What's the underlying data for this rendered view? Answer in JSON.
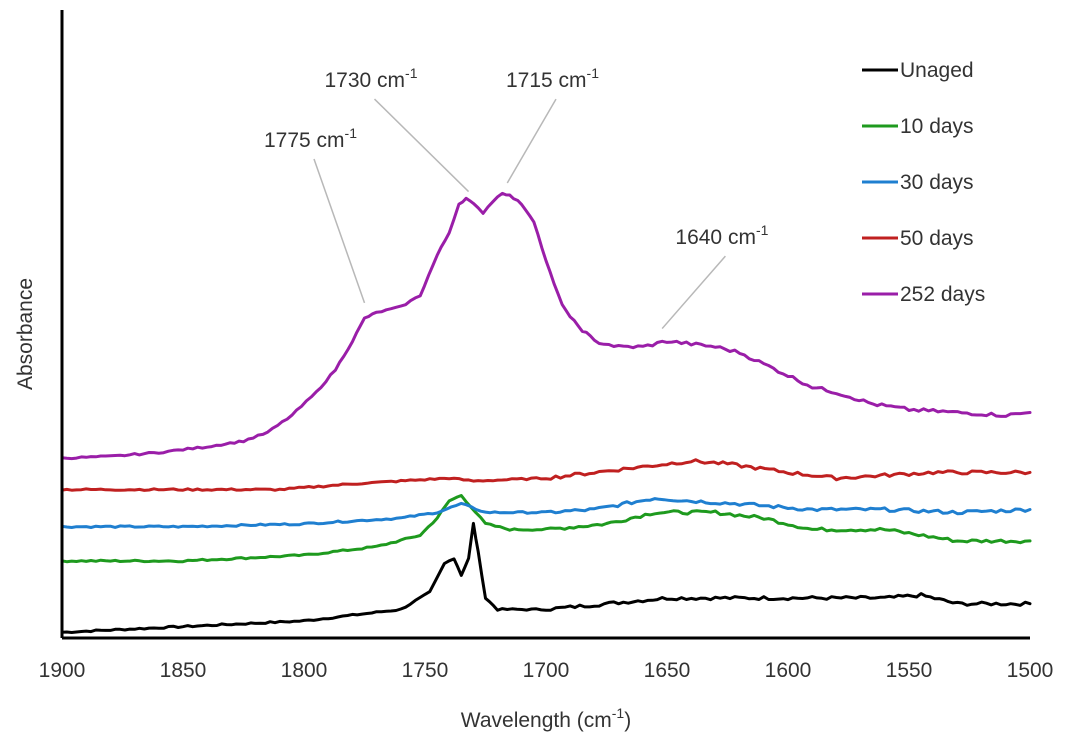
{
  "chart_data": {
    "type": "line",
    "xlabel": "Wavelength (cm",
    "xlabel_sup": "-1",
    "xlabel_close": ")",
    "ylabel": "Absorbance",
    "xlim": [
      1900,
      1500
    ],
    "x_reversed": true,
    "ylim": [
      0,
      1.1
    ],
    "x_ticks": [
      "1900",
      "1850",
      "1800",
      "1750",
      "1700",
      "1650",
      "1600",
      "1550",
      "1500"
    ],
    "grid": false,
    "legend_position": "top-right",
    "series": [
      {
        "name": "Unaged",
        "color": "#000000",
        "points": [
          [
            1900,
            0.01
          ],
          [
            1850,
            0.02
          ],
          [
            1800,
            0.03
          ],
          [
            1760,
            0.05
          ],
          [
            1748,
            0.08
          ],
          [
            1742,
            0.13
          ],
          [
            1738,
            0.14
          ],
          [
            1735,
            0.11
          ],
          [
            1732,
            0.14
          ],
          [
            1730,
            0.2
          ],
          [
            1728,
            0.15
          ],
          [
            1725,
            0.07
          ],
          [
            1720,
            0.05
          ],
          [
            1700,
            0.05
          ],
          [
            1650,
            0.07
          ],
          [
            1600,
            0.07
          ],
          [
            1560,
            0.07
          ],
          [
            1545,
            0.075
          ],
          [
            1530,
            0.06
          ],
          [
            1500,
            0.06
          ]
        ]
      },
      {
        "name": "10 days",
        "color": "#1e9a1e",
        "points": [
          [
            1900,
            0.135
          ],
          [
            1850,
            0.135
          ],
          [
            1800,
            0.145
          ],
          [
            1770,
            0.16
          ],
          [
            1752,
            0.18
          ],
          [
            1745,
            0.21
          ],
          [
            1740,
            0.24
          ],
          [
            1735,
            0.25
          ],
          [
            1731,
            0.23
          ],
          [
            1725,
            0.2
          ],
          [
            1715,
            0.19
          ],
          [
            1700,
            0.19
          ],
          [
            1675,
            0.2
          ],
          [
            1655,
            0.22
          ],
          [
            1630,
            0.22
          ],
          [
            1610,
            0.21
          ],
          [
            1590,
            0.19
          ],
          [
            1560,
            0.19
          ],
          [
            1530,
            0.17
          ],
          [
            1500,
            0.17
          ]
        ]
      },
      {
        "name": "30 days",
        "color": "#1f7fd0",
        "points": [
          [
            1900,
            0.195
          ],
          [
            1850,
            0.195
          ],
          [
            1800,
            0.2
          ],
          [
            1760,
            0.21
          ],
          [
            1745,
            0.22
          ],
          [
            1735,
            0.235
          ],
          [
            1725,
            0.22
          ],
          [
            1700,
            0.22
          ],
          [
            1680,
            0.225
          ],
          [
            1655,
            0.245
          ],
          [
            1640,
            0.24
          ],
          [
            1620,
            0.235
          ],
          [
            1590,
            0.225
          ],
          [
            1560,
            0.225
          ],
          [
            1530,
            0.22
          ],
          [
            1500,
            0.225
          ]
        ]
      },
      {
        "name": "50 days",
        "color": "#c02020",
        "points": [
          [
            1900,
            0.26
          ],
          [
            1850,
            0.26
          ],
          [
            1810,
            0.26
          ],
          [
            1780,
            0.27
          ],
          [
            1760,
            0.275
          ],
          [
            1740,
            0.28
          ],
          [
            1730,
            0.275
          ],
          [
            1700,
            0.28
          ],
          [
            1680,
            0.29
          ],
          [
            1660,
            0.3
          ],
          [
            1640,
            0.31
          ],
          [
            1625,
            0.305
          ],
          [
            1600,
            0.29
          ],
          [
            1580,
            0.28
          ],
          [
            1560,
            0.285
          ],
          [
            1540,
            0.29
          ],
          [
            1520,
            0.29
          ],
          [
            1500,
            0.29
          ]
        ]
      },
      {
        "name": "252 days",
        "color": "#9a1ea8",
        "points": [
          [
            1900,
            0.315
          ],
          [
            1880,
            0.318
          ],
          [
            1860,
            0.325
          ],
          [
            1840,
            0.335
          ],
          [
            1825,
            0.345
          ],
          [
            1815,
            0.36
          ],
          [
            1805,
            0.39
          ],
          [
            1795,
            0.43
          ],
          [
            1787,
            0.47
          ],
          [
            1780,
            0.52
          ],
          [
            1775,
            0.56
          ],
          [
            1770,
            0.57
          ],
          [
            1760,
            0.58
          ],
          [
            1752,
            0.6
          ],
          [
            1745,
            0.67
          ],
          [
            1740,
            0.71
          ],
          [
            1736,
            0.76
          ],
          [
            1733,
            0.77
          ],
          [
            1730,
            0.76
          ],
          [
            1726,
            0.745
          ],
          [
            1722,
            0.765
          ],
          [
            1718,
            0.78
          ],
          [
            1715,
            0.775
          ],
          [
            1710,
            0.76
          ],
          [
            1705,
            0.73
          ],
          [
            1700,
            0.66
          ],
          [
            1695,
            0.6
          ],
          [
            1690,
            0.56
          ],
          [
            1685,
            0.54
          ],
          [
            1680,
            0.52
          ],
          [
            1670,
            0.51
          ],
          [
            1660,
            0.51
          ],
          [
            1650,
            0.52
          ],
          [
            1640,
            0.515
          ],
          [
            1630,
            0.51
          ],
          [
            1620,
            0.5
          ],
          [
            1610,
            0.48
          ],
          [
            1600,
            0.46
          ],
          [
            1590,
            0.44
          ],
          [
            1580,
            0.43
          ],
          [
            1565,
            0.41
          ],
          [
            1550,
            0.4
          ],
          [
            1530,
            0.395
          ],
          [
            1510,
            0.39
          ],
          [
            1500,
            0.395
          ]
        ]
      }
    ],
    "annotations": [
      {
        "text": "1775 cm",
        "sup": "-1",
        "x": 1775,
        "y": 0.58,
        "label_x": 1800,
        "label_y": 0.86
      },
      {
        "text": "1730 cm",
        "sup": "-1",
        "x": 1732,
        "y": 0.775,
        "label_x": 1775,
        "label_y": 0.965
      },
      {
        "text": "1715 cm",
        "sup": "-1",
        "x": 1716,
        "y": 0.79,
        "label_x": 1700,
        "label_y": 0.965
      },
      {
        "text": "1640 cm",
        "sup": "-1",
        "x": 1652,
        "y": 0.535,
        "label_x": 1630,
        "label_y": 0.69
      }
    ]
  }
}
